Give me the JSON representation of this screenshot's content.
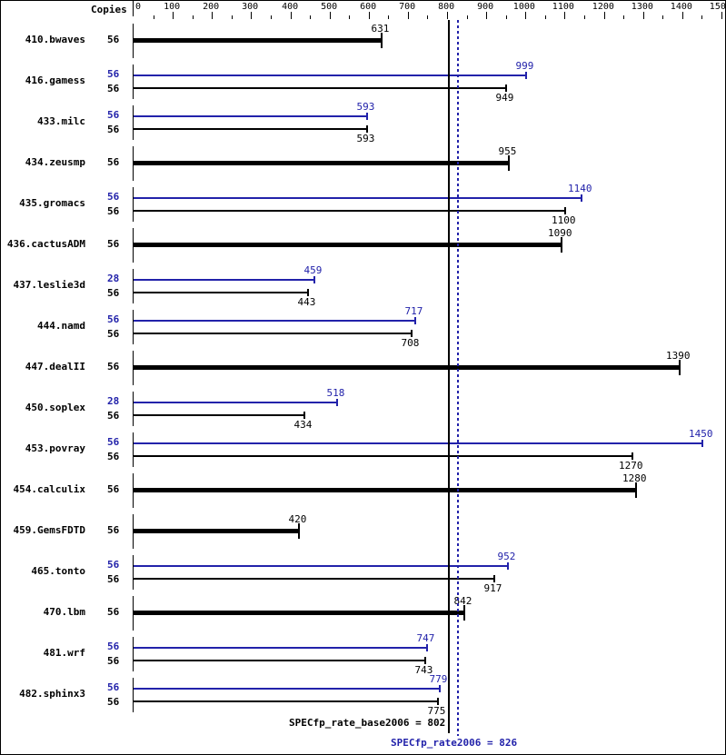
{
  "header": {
    "copies_label": "Copies"
  },
  "axis": {
    "ticks": [
      "0",
      "100",
      "200",
      "300",
      "400",
      "500",
      "600",
      "700",
      "800",
      "900",
      "1000",
      "1100",
      "1200",
      "1300",
      "1400",
      "1500"
    ]
  },
  "colors": {
    "base": "#000000",
    "peak": "#2222aa"
  },
  "summary": {
    "base_label": "SPECfp_rate_base2006 = 802",
    "peak_label": "SPECfp_rate2006 = 826"
  },
  "chart_data": {
    "type": "bar",
    "orientation": "horizontal",
    "title": "",
    "xlabel": "",
    "ylabel": "Copies",
    "xlim": [
      0,
      1500
    ],
    "x_ticks": [
      0,
      100,
      200,
      300,
      400,
      500,
      600,
      700,
      800,
      900,
      1000,
      1100,
      1200,
      1300,
      1400,
      1500
    ],
    "categories": [
      "410.bwaves",
      "416.gamess",
      "433.milc",
      "434.zeusmp",
      "435.gromacs",
      "436.cactusADM",
      "437.leslie3d",
      "444.namd",
      "447.dealII",
      "450.soplex",
      "453.povray",
      "454.calculix",
      "459.GemsFDTD",
      "465.tonto",
      "470.lbm",
      "481.wrf",
      "482.sphinx3"
    ],
    "series": [
      {
        "name": "base",
        "color": "#000000",
        "copies": [
          56,
          56,
          56,
          56,
          56,
          56,
          56,
          56,
          56,
          56,
          56,
          56,
          56,
          56,
          56,
          56,
          56
        ],
        "values": [
          631,
          949,
          593,
          955,
          1100,
          1090,
          443,
          708,
          1390,
          434,
          1270,
          1280,
          420,
          917,
          842,
          743,
          775
        ]
      },
      {
        "name": "peak",
        "color": "#2222aa",
        "copies": [
          null,
          56,
          56,
          null,
          56,
          null,
          28,
          56,
          null,
          28,
          56,
          null,
          null,
          56,
          null,
          56,
          56
        ],
        "values": [
          null,
          999,
          593,
          null,
          1140,
          null,
          459,
          717,
          null,
          518,
          1450,
          null,
          null,
          952,
          null,
          747,
          779
        ]
      }
    ],
    "reference_lines": [
      {
        "name": "SPECfp_rate_base2006",
        "value": 802,
        "style": "solid",
        "color": "#000000"
      },
      {
        "name": "SPECfp_rate2006",
        "value": 826,
        "style": "dotted",
        "color": "#2222aa"
      }
    ],
    "legend": "none"
  },
  "rows": [
    {
      "name": "410.bwaves",
      "single": true,
      "base_copies": "56",
      "base": 631,
      "base_label": "631"
    },
    {
      "name": "416.gamess",
      "single": false,
      "peak_copies": "56",
      "peak": 999,
      "peak_label": "999",
      "base_copies": "56",
      "base": 949,
      "base_label": "949"
    },
    {
      "name": "433.milc",
      "single": false,
      "peak_copies": "56",
      "peak": 593,
      "peak_label": "593",
      "base_copies": "56",
      "base": 593,
      "base_label": "593"
    },
    {
      "name": "434.zeusmp",
      "single": true,
      "base_copies": "56",
      "base": 955,
      "base_label": "955"
    },
    {
      "name": "435.gromacs",
      "single": false,
      "peak_copies": "56",
      "peak": 1140,
      "peak_label": "1140",
      "base_copies": "56",
      "base": 1100,
      "base_label": "1100"
    },
    {
      "name": "436.cactusADM",
      "single": true,
      "base_copies": "56",
      "base": 1090,
      "base_label": "1090"
    },
    {
      "name": "437.leslie3d",
      "single": false,
      "peak_copies": "28",
      "peak": 459,
      "peak_label": "459",
      "base_copies": "56",
      "base": 443,
      "base_label": "443"
    },
    {
      "name": "444.namd",
      "single": false,
      "peak_copies": "56",
      "peak": 717,
      "peak_label": "717",
      "base_copies": "56",
      "base": 708,
      "base_label": "708"
    },
    {
      "name": "447.dealII",
      "single": true,
      "base_copies": "56",
      "base": 1390,
      "base_label": "1390"
    },
    {
      "name": "450.soplex",
      "single": false,
      "peak_copies": "28",
      "peak": 518,
      "peak_label": "518",
      "base_copies": "56",
      "base": 434,
      "base_label": "434"
    },
    {
      "name": "453.povray",
      "single": false,
      "peak_copies": "56",
      "peak": 1450,
      "peak_label": "1450",
      "base_copies": "56",
      "base": 1270,
      "base_label": "1270"
    },
    {
      "name": "454.calculix",
      "single": true,
      "base_copies": "56",
      "base": 1280,
      "base_label": "1280"
    },
    {
      "name": "459.GemsFDTD",
      "single": true,
      "base_copies": "56",
      "base": 420,
      "base_label": "420"
    },
    {
      "name": "465.tonto",
      "single": false,
      "peak_copies": "56",
      "peak": 952,
      "peak_label": "952",
      "base_copies": "56",
      "base": 917,
      "base_label": "917"
    },
    {
      "name": "470.lbm",
      "single": true,
      "base_copies": "56",
      "base": 842,
      "base_label": "842"
    },
    {
      "name": "481.wrf",
      "single": false,
      "peak_copies": "56",
      "peak": 747,
      "peak_label": "747",
      "base_copies": "56",
      "base": 743,
      "base_label": "743"
    },
    {
      "name": "482.sphinx3",
      "single": false,
      "peak_copies": "56",
      "peak": 779,
      "peak_label": "779",
      "base_copies": "56",
      "base": 775,
      "base_label": "775"
    }
  ]
}
